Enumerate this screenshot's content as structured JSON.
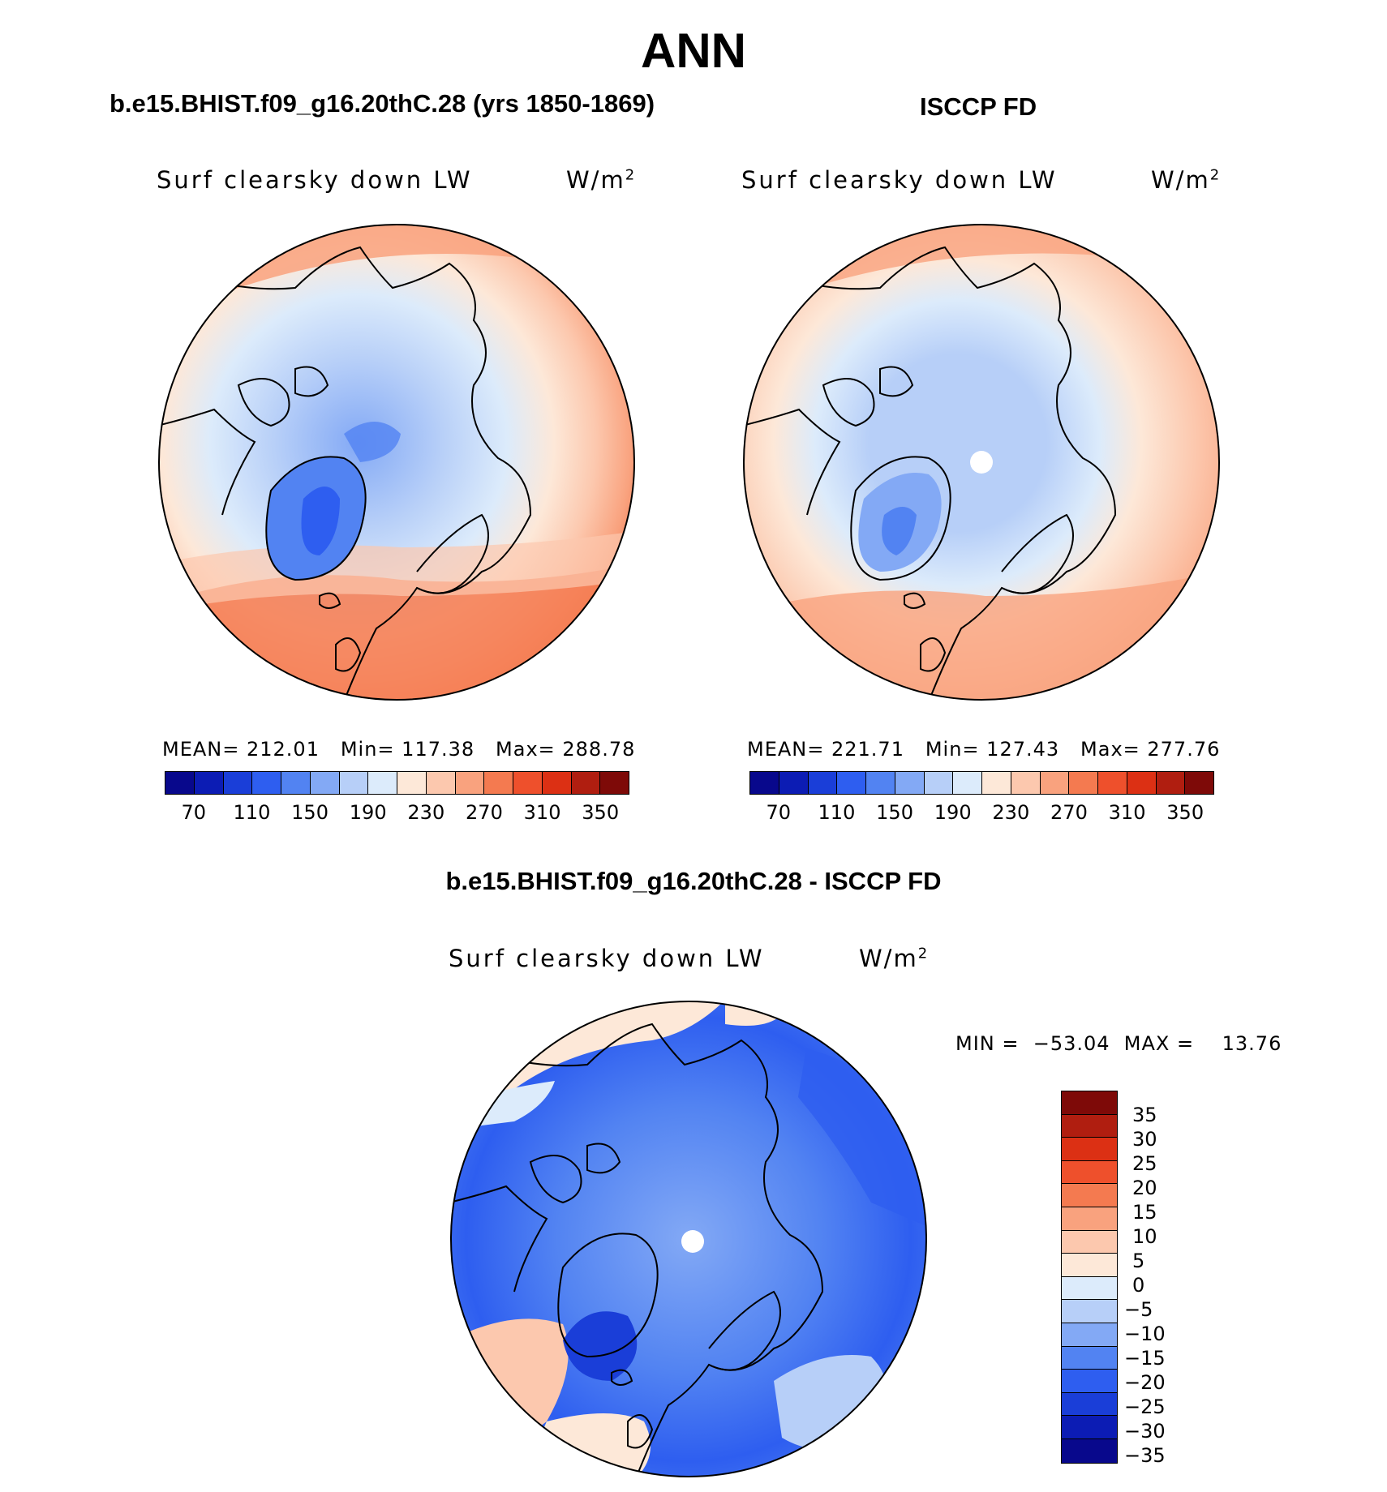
{
  "figure": {
    "season": "ANN",
    "variable": "Surf clearsky down LW",
    "units_base": "W/m",
    "units_exp": "2"
  },
  "panels": {
    "model": {
      "title": "b.e15.BHIST.f09_g16.20thC.28 (yrs 1850-1869)",
      "stats": "MEAN= 212.01   Min= 117.38   Max= 288.78"
    },
    "obs": {
      "title": "ISCCP FD",
      "stats": "MEAN= 221.71   Min= 127.43   Max= 277.76"
    },
    "diff": {
      "title": "b.e15.BHIST.f09_g16.20thC.28 - ISCCP FD",
      "stats": "MIN =  −53.04  MAX =    13.76"
    }
  },
  "colorbars": {
    "abs": {
      "colors": [
        "#08088c",
        "#0c1cb4",
        "#1a3ed8",
        "#2e5ef0",
        "#5283f2",
        "#83a9f5",
        "#b7cff8",
        "#dcebfb",
        "#fde8d8",
        "#fcc8ae",
        "#f9a27e",
        "#f47a50",
        "#ee502c",
        "#dc3014",
        "#b01e10",
        "#7e0a08"
      ],
      "ticks": [
        "70",
        "110",
        "150",
        "190",
        "230",
        "270",
        "310",
        "350"
      ]
    },
    "diff": {
      "colors": [
        "#08088c",
        "#0c1cb4",
        "#1a3ed8",
        "#2e5ef0",
        "#5283f2",
        "#83a9f5",
        "#b7cff8",
        "#dcebfb",
        "#fde8d8",
        "#fcc8ae",
        "#f9a27e",
        "#f47a50",
        "#ee502c",
        "#dc3014",
        "#b01e10",
        "#7e0a08"
      ],
      "ticks": [
        "35",
        "30",
        "25",
        "20",
        "15",
        "10",
        "5",
        "0",
        "−5",
        "−10",
        "−15",
        "−20",
        "−25",
        "−30",
        "−35"
      ]
    }
  }
}
